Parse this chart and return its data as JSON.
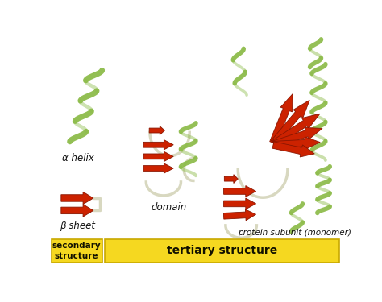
{
  "background_color": "#ffffff",
  "labels": {
    "alpha_helix": "α helix",
    "beta_sheet": "β sheet",
    "domain": "domain",
    "protein_subunit": "protein subunit (monomer)"
  },
  "bottom_labels": {
    "secondary": "secondary\nstructure",
    "tertiary": "tertiary structure"
  },
  "colors": {
    "yellow_box": "#f5d820",
    "green_helix": "#8aba45",
    "green_dark": "#5a9020",
    "red_arrow": "#cc2200",
    "red_dark": "#881500",
    "white_loop": "#d8d8c0",
    "text_dark": "#111111"
  },
  "fig_width": 4.74,
  "fig_height": 3.75,
  "dpi": 100
}
